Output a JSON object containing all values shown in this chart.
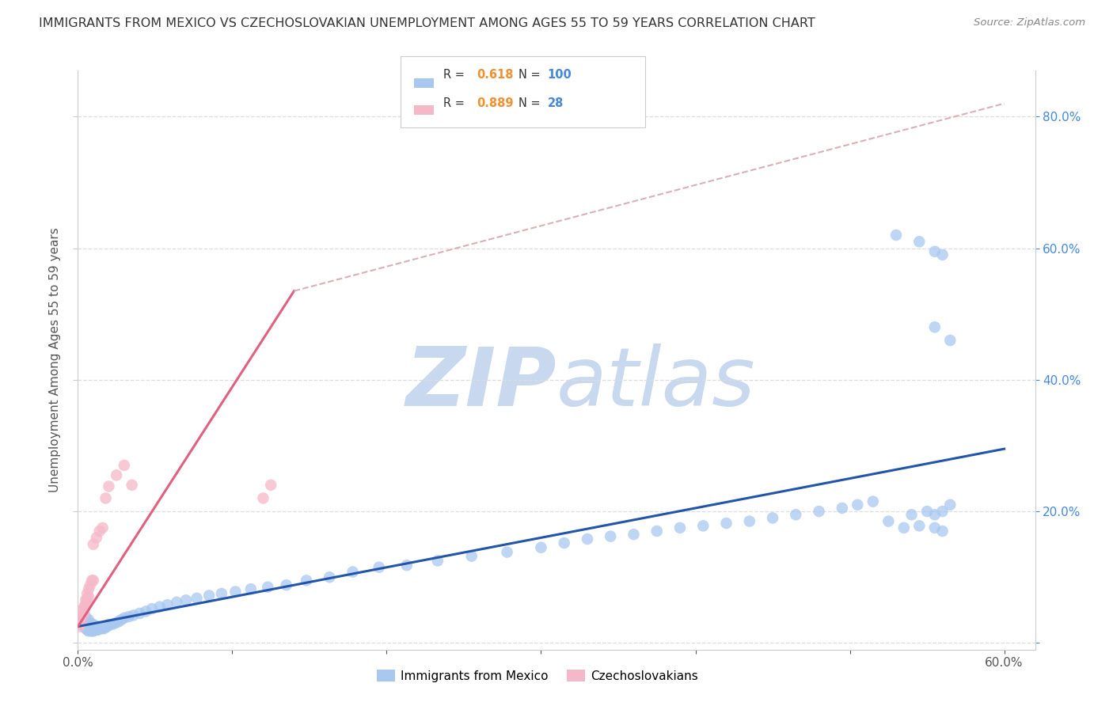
{
  "title": "IMMIGRANTS FROM MEXICO VS CZECHOSLOVAKIAN UNEMPLOYMENT AMONG AGES 55 TO 59 YEARS CORRELATION CHART",
  "source": "Source: ZipAtlas.com",
  "ylabel": "Unemployment Among Ages 55 to 59 years",
  "xlim": [
    0.0,
    0.62
  ],
  "ylim": [
    -0.01,
    0.87
  ],
  "xticks": [
    0.0,
    0.1,
    0.2,
    0.3,
    0.4,
    0.5,
    0.6
  ],
  "yticks": [
    0.0,
    0.2,
    0.4,
    0.6,
    0.8
  ],
  "blue_color": "#A8C8F0",
  "pink_color": "#F5B8C8",
  "blue_line_color": "#2255AA",
  "pink_line_color": "#E06080",
  "dashed_line_color": "#D8B0B8",
  "legend_R_color": "#F09030",
  "legend_N_color": "#4488DD",
  "axis_label_color": "#4488DD",
  "background_color": "#FFFFFF",
  "grid_color": "#DDDDDD",
  "title_color": "#333333",
  "watermark_color": "#C8D8EE",
  "blue_scatter_x": [
    0.002,
    0.003,
    0.003,
    0.004,
    0.004,
    0.004,
    0.005,
    0.005,
    0.005,
    0.005,
    0.006,
    0.006,
    0.006,
    0.007,
    0.007,
    0.007,
    0.007,
    0.008,
    0.008,
    0.008,
    0.009,
    0.009,
    0.009,
    0.01,
    0.01,
    0.01,
    0.011,
    0.011,
    0.012,
    0.012,
    0.013,
    0.013,
    0.014,
    0.015,
    0.016,
    0.017,
    0.018,
    0.019,
    0.02,
    0.022,
    0.024,
    0.026,
    0.028,
    0.03,
    0.033,
    0.036,
    0.04,
    0.044,
    0.048,
    0.053,
    0.058,
    0.064,
    0.07,
    0.077,
    0.085,
    0.093,
    0.102,
    0.112,
    0.123,
    0.135,
    0.148,
    0.163,
    0.178,
    0.195,
    0.213,
    0.233,
    0.255,
    0.278,
    0.3,
    0.315,
    0.33,
    0.345,
    0.36,
    0.375,
    0.39,
    0.405,
    0.42,
    0.435,
    0.45,
    0.465,
    0.48,
    0.495,
    0.505,
    0.515,
    0.525,
    0.535,
    0.545,
    0.555,
    0.56,
    0.565,
    0.53,
    0.545,
    0.555,
    0.56,
    0.555,
    0.565,
    0.55,
    0.54,
    0.555,
    0.56
  ],
  "blue_scatter_y": [
    0.035,
    0.03,
    0.038,
    0.025,
    0.03,
    0.042,
    0.022,
    0.028,
    0.035,
    0.04,
    0.02,
    0.025,
    0.032,
    0.018,
    0.022,
    0.028,
    0.035,
    0.02,
    0.025,
    0.03,
    0.018,
    0.022,
    0.028,
    0.018,
    0.022,
    0.028,
    0.02,
    0.025,
    0.02,
    0.025,
    0.02,
    0.025,
    0.022,
    0.022,
    0.022,
    0.022,
    0.025,
    0.025,
    0.028,
    0.028,
    0.03,
    0.032,
    0.035,
    0.038,
    0.04,
    0.042,
    0.045,
    0.048,
    0.052,
    0.055,
    0.058,
    0.062,
    0.065,
    0.068,
    0.072,
    0.075,
    0.078,
    0.082,
    0.085,
    0.088,
    0.095,
    0.1,
    0.108,
    0.115,
    0.118,
    0.125,
    0.132,
    0.138,
    0.145,
    0.152,
    0.158,
    0.162,
    0.165,
    0.17,
    0.175,
    0.178,
    0.182,
    0.185,
    0.19,
    0.195,
    0.2,
    0.205,
    0.21,
    0.215,
    0.185,
    0.175,
    0.178,
    0.195,
    0.2,
    0.21,
    0.62,
    0.61,
    0.595,
    0.59,
    0.48,
    0.46,
    0.2,
    0.195,
    0.175,
    0.17
  ],
  "pink_scatter_x": [
    0.001,
    0.002,
    0.002,
    0.003,
    0.003,
    0.004,
    0.004,
    0.005,
    0.005,
    0.006,
    0.006,
    0.006,
    0.007,
    0.007,
    0.008,
    0.009,
    0.01,
    0.01,
    0.012,
    0.014,
    0.016,
    0.018,
    0.02,
    0.025,
    0.03,
    0.035,
    0.12,
    0.125
  ],
  "pink_scatter_y": [
    0.025,
    0.03,
    0.038,
    0.042,
    0.05,
    0.045,
    0.055,
    0.058,
    0.065,
    0.06,
    0.068,
    0.075,
    0.07,
    0.082,
    0.088,
    0.095,
    0.095,
    0.15,
    0.16,
    0.17,
    0.175,
    0.22,
    0.238,
    0.255,
    0.27,
    0.24,
    0.22,
    0.24
  ],
  "blue_line_x0": 0.0,
  "blue_line_x1": 0.6,
  "blue_line_y0": 0.025,
  "blue_line_y1": 0.295,
  "pink_line_x0": 0.0,
  "pink_line_x1": 0.14,
  "pink_line_y0": 0.025,
  "pink_line_y1": 0.535,
  "dashed_line_x0": 0.14,
  "dashed_line_x1": 0.6,
  "dashed_line_y0": 0.535,
  "dashed_line_y1": 0.82
}
